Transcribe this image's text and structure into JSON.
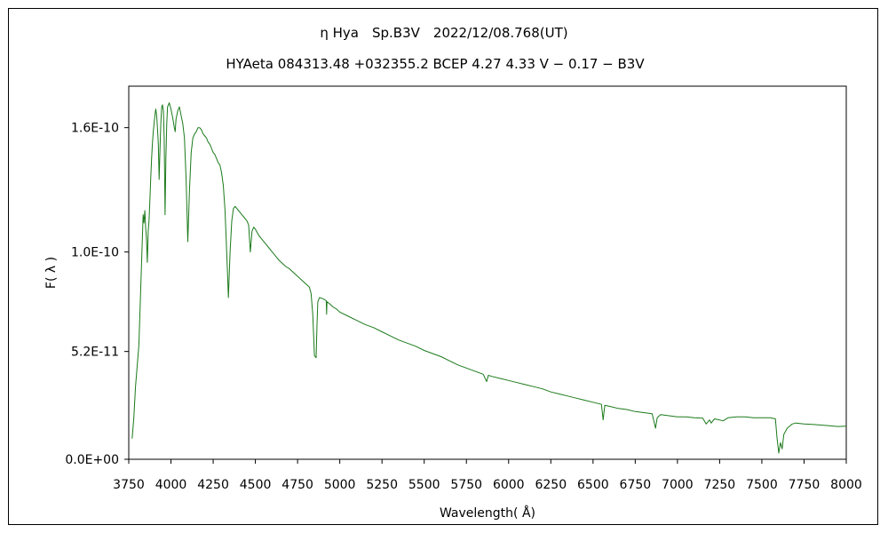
{
  "chart_data": {
    "type": "line",
    "title": "η Hya　Sp.B3V　2022/12/08.768(UT)",
    "subtitle": "HYAeta 084313.48 +032355.2 BCEP 4.27 4.33 V − 0.17 − B3V",
    "xlabel": "Wavelength( Å)",
    "ylabel": "F( λ )",
    "xlim": [
      3750,
      8000
    ],
    "ylim": [
      0,
      1.8e-10
    ],
    "x_ticks": [
      "3750",
      "4000",
      "4250",
      "4500",
      "4750",
      "5000",
      "5250",
      "5500",
      "5750",
      "6000",
      "6250",
      "6500",
      "6750",
      "7000",
      "7250",
      "7500",
      "7750",
      "8000"
    ],
    "y_ticks": [
      {
        "value": 0,
        "label": "0.0E+00"
      },
      {
        "value": 5.2e-11,
        "label": "5.2E-11"
      },
      {
        "value": 1e-10,
        "label": "1.0E-10"
      },
      {
        "value": 1.6e-10,
        "label": "1.6E-10"
      }
    ],
    "grid": false,
    "line_color": "#1a7a1a",
    "series": [
      {
        "values": [
          [
            3770,
            1e-11
          ],
          [
            3780,
            2e-11
          ],
          [
            3790,
            3.5e-11
          ],
          [
            3800,
            4.5e-11
          ],
          [
            3810,
            5.5e-11
          ],
          [
            3820,
            8e-11
          ],
          [
            3830,
            1.05e-10
          ],
          [
            3835,
            1.18e-10
          ],
          [
            3840,
            1.14e-10
          ],
          [
            3845,
            1.2e-10
          ],
          [
            3850,
            1.12e-10
          ],
          [
            3855,
            1.06e-10
          ],
          [
            3860,
            9.5e-11
          ],
          [
            3865,
            1.1e-10
          ],
          [
            3870,
            1.15e-10
          ],
          [
            3875,
            1.25e-10
          ],
          [
            3880,
            1.35e-10
          ],
          [
            3885,
            1.45e-10
          ],
          [
            3890,
            1.52e-10
          ],
          [
            3895,
            1.58e-10
          ],
          [
            3900,
            1.62e-10
          ],
          [
            3905,
            1.66e-10
          ],
          [
            3910,
            1.69e-10
          ],
          [
            3915,
            1.66e-10
          ],
          [
            3920,
            1.6e-10
          ],
          [
            3925,
            1.52e-10
          ],
          [
            3930,
            1.35e-10
          ],
          [
            3935,
            1.5e-10
          ],
          [
            3940,
            1.62e-10
          ],
          [
            3945,
            1.7e-10
          ],
          [
            3950,
            1.71e-10
          ],
          [
            3955,
            1.68e-10
          ],
          [
            3960,
            1.55e-10
          ],
          [
            3965,
            1.18e-10
          ],
          [
            3970,
            1.45e-10
          ],
          [
            3975,
            1.62e-10
          ],
          [
            3980,
            1.7e-10
          ],
          [
            3990,
            1.72e-10
          ],
          [
            4000,
            1.69e-10
          ],
          [
            4010,
            1.65e-10
          ],
          [
            4020,
            1.6e-10
          ],
          [
            4025,
            1.58e-10
          ],
          [
            4030,
            1.64e-10
          ],
          [
            4040,
            1.68e-10
          ],
          [
            4050,
            1.7e-10
          ],
          [
            4060,
            1.66e-10
          ],
          [
            4070,
            1.62e-10
          ],
          [
            4080,
            1.55e-10
          ],
          [
            4090,
            1.35e-10
          ],
          [
            4100,
            1.05e-10
          ],
          [
            4110,
            1.3e-10
          ],
          [
            4120,
            1.48e-10
          ],
          [
            4130,
            1.55e-10
          ],
          [
            4140,
            1.57e-10
          ],
          [
            4150,
            1.58e-10
          ],
          [
            4160,
            1.6e-10
          ],
          [
            4170,
            1.6e-10
          ],
          [
            4180,
            1.59e-10
          ],
          [
            4190,
            1.57e-10
          ],
          [
            4200,
            1.56e-10
          ],
          [
            4210,
            1.55e-10
          ],
          [
            4220,
            1.53e-10
          ],
          [
            4230,
            1.52e-10
          ],
          [
            4240,
            1.5e-10
          ],
          [
            4250,
            1.48e-10
          ],
          [
            4260,
            1.47e-10
          ],
          [
            4270,
            1.45e-10
          ],
          [
            4280,
            1.43e-10
          ],
          [
            4290,
            1.42e-10
          ],
          [
            4300,
            1.38e-10
          ],
          [
            4310,
            1.32e-10
          ],
          [
            4320,
            1.2e-10
          ],
          [
            4330,
            1e-10
          ],
          [
            4340,
            7.8e-11
          ],
          [
            4350,
            1e-10
          ],
          [
            4360,
            1.15e-10
          ],
          [
            4370,
            1.21e-10
          ],
          [
            4380,
            1.22e-10
          ],
          [
            4390,
            1.21e-10
          ],
          [
            4400,
            1.2e-10
          ],
          [
            4410,
            1.19e-10
          ],
          [
            4420,
            1.18e-10
          ],
          [
            4430,
            1.17e-10
          ],
          [
            4440,
            1.16e-10
          ],
          [
            4450,
            1.15e-10
          ],
          [
            4460,
            1.13e-10
          ],
          [
            4470,
            1e-10
          ],
          [
            4480,
            1.1e-10
          ],
          [
            4490,
            1.12e-10
          ],
          [
            4500,
            1.11e-10
          ],
          [
            4520,
            1.08e-10
          ],
          [
            4540,
            1.06e-10
          ],
          [
            4560,
            1.04e-10
          ],
          [
            4580,
            1.02e-10
          ],
          [
            4600,
            1e-10
          ],
          [
            4620,
            9.8e-11
          ],
          [
            4640,
            9.6e-11
          ],
          [
            4660,
            9.45e-11
          ],
          [
            4680,
            9.3e-11
          ],
          [
            4700,
            9.2e-11
          ],
          [
            4720,
            9.05e-11
          ],
          [
            4740,
            8.9e-11
          ],
          [
            4760,
            8.75e-11
          ],
          [
            4780,
            8.6e-11
          ],
          [
            4800,
            8.45e-11
          ],
          [
            4820,
            8.3e-11
          ],
          [
            4830,
            8e-11
          ],
          [
            4840,
            7e-11
          ],
          [
            4850,
            5e-11
          ],
          [
            4860,
            4.9e-11
          ],
          [
            4865,
            6.5e-11
          ],
          [
            4870,
            7.6e-11
          ],
          [
            4880,
            7.8e-11
          ],
          [
            4900,
            7.75e-11
          ],
          [
            4920,
            7.65e-11
          ],
          [
            4922,
            7e-11
          ],
          [
            4924,
            7.6e-11
          ],
          [
            4940,
            7.5e-11
          ],
          [
            4960,
            7.35e-11
          ],
          [
            4980,
            7.25e-11
          ],
          [
            5000,
            7.1e-11
          ],
          [
            5050,
            6.9e-11
          ],
          [
            5100,
            6.7e-11
          ],
          [
            5150,
            6.5e-11
          ],
          [
            5200,
            6.35e-11
          ],
          [
            5250,
            6.15e-11
          ],
          [
            5300,
            5.95e-11
          ],
          [
            5350,
            5.75e-11
          ],
          [
            5400,
            5.6e-11
          ],
          [
            5450,
            5.45e-11
          ],
          [
            5500,
            5.25e-11
          ],
          [
            5550,
            5.1e-11
          ],
          [
            5600,
            4.95e-11
          ],
          [
            5650,
            4.75e-11
          ],
          [
            5700,
            4.55e-11
          ],
          [
            5750,
            4.4e-11
          ],
          [
            5800,
            4.25e-11
          ],
          [
            5850,
            4.1e-11
          ],
          [
            5870,
            3.75e-11
          ],
          [
            5880,
            4.05e-11
          ],
          [
            5900,
            4e-11
          ],
          [
            5950,
            3.9e-11
          ],
          [
            6000,
            3.8e-11
          ],
          [
            6050,
            3.7e-11
          ],
          [
            6100,
            3.6e-11
          ],
          [
            6150,
            3.5e-11
          ],
          [
            6200,
            3.4e-11
          ],
          [
            6250,
            3.25e-11
          ],
          [
            6300,
            3.15e-11
          ],
          [
            6350,
            3.05e-11
          ],
          [
            6400,
            2.95e-11
          ],
          [
            6450,
            2.85e-11
          ],
          [
            6500,
            2.75e-11
          ],
          [
            6550,
            2.65e-11
          ],
          [
            6560,
            1.9e-11
          ],
          [
            6570,
            2.6e-11
          ],
          [
            6600,
            2.55e-11
          ],
          [
            6650,
            2.45e-11
          ],
          [
            6700,
            2.4e-11
          ],
          [
            6750,
            2.3e-11
          ],
          [
            6800,
            2.25e-11
          ],
          [
            6850,
            2.2e-11
          ],
          [
            6870,
            1.5e-11
          ],
          [
            6880,
            2e-11
          ],
          [
            6900,
            2.15e-11
          ],
          [
            6950,
            2.1e-11
          ],
          [
            7000,
            2.05e-11
          ],
          [
            7050,
            2.05e-11
          ],
          [
            7100,
            2e-11
          ],
          [
            7150,
            1.98e-11
          ],
          [
            7170,
            1.7e-11
          ],
          [
            7190,
            1.9e-11
          ],
          [
            7200,
            1.75e-11
          ],
          [
            7220,
            1.95e-11
          ],
          [
            7250,
            1.9e-11
          ],
          [
            7270,
            1.85e-11
          ],
          [
            7300,
            2e-11
          ],
          [
            7350,
            2.05e-11
          ],
          [
            7400,
            2.05e-11
          ],
          [
            7450,
            2e-11
          ],
          [
            7500,
            2e-11
          ],
          [
            7550,
            2e-11
          ],
          [
            7580,
            1.95e-11
          ],
          [
            7590,
            1e-11
          ],
          [
            7600,
            3e-12
          ],
          [
            7610,
            8e-12
          ],
          [
            7620,
            5e-12
          ],
          [
            7630,
            1.2e-11
          ],
          [
            7650,
            1.5e-11
          ],
          [
            7680,
            1.7e-11
          ],
          [
            7700,
            1.75e-11
          ],
          [
            7750,
            1.7e-11
          ],
          [
            7800,
            1.68e-11
          ],
          [
            7850,
            1.65e-11
          ],
          [
            7900,
            1.62e-11
          ],
          [
            7950,
            1.58e-11
          ],
          [
            8000,
            1.6e-11
          ]
        ]
      }
    ]
  }
}
